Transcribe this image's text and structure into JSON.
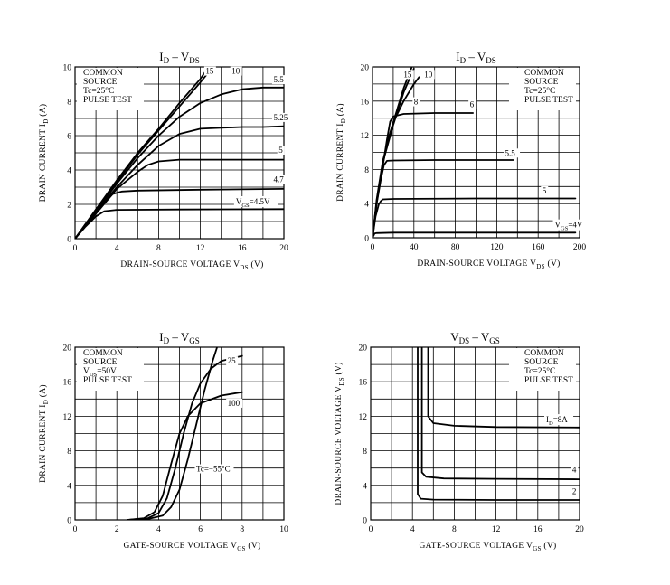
{
  "chart_data": [
    {
      "type": "line",
      "id": "id-vds-low",
      "title": "ID – VDS",
      "title_main": "I",
      "title_sub": "D",
      "title_dash": "–",
      "title_main2": "V",
      "title_sub2": "DS",
      "xlabel": "DRAIN-SOURCE VOLTAGE",
      "xlabel_sym": "V",
      "xlabel_sub": "DS",
      "xlabel_unit": "(V)",
      "ylabel": "DRAIN CURRENT",
      "ylabel_sym": "I",
      "ylabel_sub": "D",
      "ylabel_unit": "(A)",
      "xlim": [
        0,
        20
      ],
      "ylim": [
        0,
        10
      ],
      "xticks": [
        0,
        4,
        8,
        12,
        16,
        20
      ],
      "yticks": [
        0,
        2,
        4,
        6,
        8,
        10
      ],
      "xgrid": [
        2,
        4,
        6,
        8,
        10,
        12,
        14,
        16,
        18
      ],
      "ygrid": [
        1,
        2,
        3,
        4,
        5,
        6,
        7,
        8,
        9
      ],
      "notes": [
        "COMMON",
        "SOURCE",
        "Tc=25°C",
        "PULSE TEST"
      ],
      "series": [
        {
          "name": "15",
          "points": [
            [
              0,
              0
            ],
            [
              2,
              1.7
            ],
            [
              4,
              3.4
            ],
            [
              6,
              5.0
            ],
            [
              8,
              6.4
            ],
            [
              10,
              7.9
            ],
            [
              12,
              9.3
            ],
            [
              12.8,
              10
            ]
          ]
        },
        {
          "name": "10",
          "points": [
            [
              0,
              0
            ],
            [
              2,
              1.7
            ],
            [
              4,
              3.3
            ],
            [
              6,
              4.9
            ],
            [
              8,
              6.3
            ],
            [
              10,
              7.7
            ],
            [
              12,
              9.1
            ],
            [
              13.2,
              10
            ]
          ]
        },
        {
          "name": "5.5",
          "points": [
            [
              0,
              0
            ],
            [
              2,
              1.6
            ],
            [
              4,
              3.2
            ],
            [
              6,
              4.7
            ],
            [
              8,
              6.0
            ],
            [
              10,
              7.1
            ],
            [
              12,
              7.9
            ],
            [
              14,
              8.4
            ],
            [
              16,
              8.7
            ],
            [
              18,
              8.8
            ],
            [
              20,
              8.8
            ]
          ]
        },
        {
          "name": "5.25",
          "points": [
            [
              0,
              0
            ],
            [
              2,
              1.55
            ],
            [
              4,
              3.0
            ],
            [
              6,
              4.3
            ],
            [
              8,
              5.4
            ],
            [
              10,
              6.1
            ],
            [
              12,
              6.4
            ],
            [
              14,
              6.45
            ],
            [
              16,
              6.5
            ],
            [
              18,
              6.5
            ],
            [
              20,
              6.55
            ]
          ]
        },
        {
          "name": "5",
          "points": [
            [
              0,
              0
            ],
            [
              2,
              1.45
            ],
            [
              4,
              2.9
            ],
            [
              6,
              3.9
            ],
            [
              7,
              4.3
            ],
            [
              8,
              4.5
            ],
            [
              10,
              4.6
            ],
            [
              12,
              4.6
            ],
            [
              20,
              4.6
            ]
          ]
        },
        {
          "name": "4.7",
          "points": [
            [
              0,
              0
            ],
            [
              1,
              0.8
            ],
            [
              2,
              1.5
            ],
            [
              3,
              2.2
            ],
            [
              3.6,
              2.6
            ],
            [
              4.5,
              2.75
            ],
            [
              6,
              2.8
            ],
            [
              12,
              2.85
            ],
            [
              20,
              2.9
            ]
          ]
        },
        {
          "name": "VGS=4.5V",
          "points": [
            [
              0,
              0
            ],
            [
              1,
              0.7
            ],
            [
              2,
              1.3
            ],
            [
              2.8,
              1.6
            ],
            [
              4,
              1.68
            ],
            [
              10,
              1.7
            ],
            [
              20,
              1.72
            ]
          ]
        }
      ],
      "labels": [
        {
          "text": "15",
          "x": 12.5,
          "y": 9.6
        },
        {
          "text": "10",
          "x": 15,
          "y": 9.6
        },
        {
          "text": "5.5",
          "x": 19,
          "y": 9.1
        },
        {
          "text": "5.25",
          "x": 19,
          "y": 6.9
        },
        {
          "text": "5",
          "x": 19.5,
          "y": 5.0
        },
        {
          "text": "4.7",
          "x": 19,
          "y": 3.3
        },
        {
          "text": "VGS=4.5V",
          "x": 15.4,
          "y": 2.0,
          "main": "V",
          "sub": "GS",
          "rest": "=4.5V"
        }
      ]
    },
    {
      "type": "line",
      "id": "id-vds-high",
      "title": "ID – VDS",
      "title_main": "I",
      "title_sub": "D",
      "title_dash": "–",
      "title_main2": "V",
      "title_sub2": "DS",
      "xlabel": "DRAIN-SOURCE VOLTAGE",
      "xlabel_sym": "V",
      "xlabel_sub": "DS",
      "xlabel_unit": "(V)",
      "ylabel": "DRAIN CURRENT",
      "ylabel_sym": "I",
      "ylabel_sub": "D",
      "ylabel_unit": "(A)",
      "xlim": [
        0,
        200
      ],
      "ylim": [
        0,
        20
      ],
      "xticks": [
        0,
        40,
        80,
        120,
        160,
        200
      ],
      "yticks": [
        0,
        4,
        8,
        12,
        16,
        20
      ],
      "xgrid": [
        20,
        40,
        60,
        80,
        100,
        120,
        140,
        160,
        180
      ],
      "ygrid": [
        2,
        4,
        6,
        8,
        10,
        12,
        14,
        16,
        18
      ],
      "notes": [
        "COMMON",
        "SOURCE",
        "Tc=25°C",
        "PULSE TEST"
      ],
      "series": [
        {
          "name": "15",
          "points": [
            [
              0,
              0
            ],
            [
              4,
              4.5
            ],
            [
              10,
              9
            ],
            [
              20,
              13.5
            ],
            [
              30,
              17.5
            ],
            [
              38,
              20
            ]
          ]
        },
        {
          "name": "10",
          "points": [
            [
              0,
              0
            ],
            [
              4,
              4.3
            ],
            [
              10,
              8.8
            ],
            [
              20,
              13.2
            ],
            [
              30,
              17
            ],
            [
              40,
              19.8
            ]
          ]
        },
        {
          "name": "8",
          "points": [
            [
              0,
              0
            ],
            [
              4,
              4.2
            ],
            [
              10,
              8.6
            ],
            [
              15,
              11.5
            ],
            [
              20,
              13.5
            ],
            [
              30,
              16
            ],
            [
              40,
              18
            ],
            [
              45,
              18.8
            ]
          ]
        },
        {
          "name": "6",
          "points": [
            [
              0,
              0
            ],
            [
              4,
              4.1
            ],
            [
              10,
              8.4
            ],
            [
              14,
              11.5
            ],
            [
              17,
              13.6
            ],
            [
              20,
              14.2
            ],
            [
              30,
              14.5
            ],
            [
              60,
              14.6
            ],
            [
              97,
              14.6
            ]
          ]
        },
        {
          "name": "5.5",
          "points": [
            [
              0,
              0
            ],
            [
              4,
              4.0
            ],
            [
              8,
              6.8
            ],
            [
              11,
              8.5
            ],
            [
              14,
              9.0
            ],
            [
              20,
              9.05
            ],
            [
              60,
              9.1
            ],
            [
              136,
              9.1
            ]
          ]
        },
        {
          "name": "5",
          "points": [
            [
              0,
              0
            ],
            [
              3,
              2.5
            ],
            [
              6,
              3.9
            ],
            [
              8,
              4.3
            ],
            [
              10,
              4.5
            ],
            [
              20,
              4.55
            ],
            [
              100,
              4.6
            ],
            [
              196,
              4.6
            ]
          ]
        },
        {
          "name": "VGS=4V",
          "points": [
            [
              0,
              0
            ],
            [
              2,
              0.5
            ],
            [
              4,
              0.55
            ],
            [
              20,
              0.6
            ],
            [
              196,
              0.6
            ]
          ]
        }
      ],
      "labels": [
        {
          "text": "15",
          "x": 30,
          "y": 18.8
        },
        {
          "text": "10",
          "x": 50,
          "y": 18.8
        },
        {
          "text": "8",
          "x": 40,
          "y": 15.6
        },
        {
          "text": "6",
          "x": 94,
          "y": 15.3
        },
        {
          "text": "5.5",
          "x": 128,
          "y": 9.6
        },
        {
          "text": "5",
          "x": 164,
          "y": 5.2
        },
        {
          "text": "VGS=4V",
          "x": 176,
          "y": 1.2,
          "main": "V",
          "sub": "GS",
          "rest": "=4V"
        }
      ]
    },
    {
      "type": "line",
      "id": "id-vgs",
      "title": "ID – VGS",
      "title_main": "I",
      "title_sub": "D",
      "title_dash": "–",
      "title_main2": "V",
      "title_sub2": "GS",
      "xlabel": "GATE-SOURCE VOLTAGE",
      "xlabel_sym": "V",
      "xlabel_sub": "GS",
      "xlabel_unit": "(V)",
      "ylabel": "DRAIN CURRENT",
      "ylabel_sym": "I",
      "ylabel_sub": "D",
      "ylabel_unit": "(A)",
      "xlim": [
        0,
        10
      ],
      "ylim": [
        0,
        20
      ],
      "xticks": [
        0,
        2,
        4,
        6,
        8,
        10
      ],
      "yticks": [
        0,
        4,
        8,
        12,
        16,
        20
      ],
      "xgrid": [
        1,
        2,
        3,
        4,
        5,
        6,
        7,
        8,
        9
      ],
      "ygrid": [
        2,
        4,
        6,
        8,
        10,
        12,
        14,
        16,
        18
      ],
      "notes": [
        "COMMON",
        "SOURCE",
        "VDS=50V",
        "PULSE TEST"
      ],
      "notes_sub": {
        "2": {
          "main": "V",
          "sub": "DS",
          "rest": "=50V"
        }
      },
      "series": [
        {
          "name": "Tc=-55°C",
          "points": [
            [
              2.5,
              0
            ],
            [
              3.5,
              0.1
            ],
            [
              4.2,
              0.5
            ],
            [
              4.6,
              1.5
            ],
            [
              5,
              3.5
            ],
            [
              5.4,
              7
            ],
            [
              5.8,
              11
            ],
            [
              6.2,
              15
            ],
            [
              6.6,
              18.5
            ],
            [
              6.8,
              20
            ]
          ]
        },
        {
          "name": "25",
          "points": [
            [
              2.5,
              0
            ],
            [
              3.5,
              0.2
            ],
            [
              4,
              0.8
            ],
            [
              4.4,
              2.5
            ],
            [
              4.8,
              6
            ],
            [
              5.2,
              10
            ],
            [
              5.6,
              13.5
            ],
            [
              6,
              15.8
            ],
            [
              6.5,
              17.5
            ],
            [
              7,
              18.4
            ],
            [
              8,
              19
            ]
          ]
        },
        {
          "name": "100",
          "points": [
            [
              2.5,
              0
            ],
            [
              3.3,
              0.2
            ],
            [
              3.8,
              0.9
            ],
            [
              4.2,
              2.8
            ],
            [
              4.6,
              6.5
            ],
            [
              5,
              10
            ],
            [
              5.4,
              12
            ],
            [
              6,
              13.5
            ],
            [
              7,
              14.4
            ],
            [
              8,
              14.8
            ]
          ]
        }
      ],
      "labels": [
        {
          "text": "25",
          "x": 7.3,
          "y": 18.1
        },
        {
          "text": "100",
          "x": 7.3,
          "y": 13.2
        },
        {
          "text": "Tc=−55°C",
          "x": 5.8,
          "y": 5.6
        }
      ]
    },
    {
      "type": "line",
      "id": "vds-vgs",
      "title": "VDS – VGS",
      "title_main": "V",
      "title_sub": "DS",
      "title_dash": "–",
      "title_main2": "V",
      "title_sub2": "GS",
      "xlabel": "GATE-SOURCE VOLTAGE",
      "xlabel_sym": "V",
      "xlabel_sub": "GS",
      "xlabel_unit": "(V)",
      "ylabel": "DRAIN-SOURCE VOLTAGE",
      "ylabel_sym": "V",
      "ylabel_sub": "DS",
      "ylabel_unit": "(V)",
      "xlim": [
        0,
        20
      ],
      "ylim": [
        0,
        20
      ],
      "xticks": [
        0,
        4,
        8,
        12,
        16,
        20
      ],
      "yticks": [
        0,
        4,
        8,
        12,
        16,
        20
      ],
      "xgrid": [
        2,
        4,
        6,
        8,
        10,
        12,
        14,
        16,
        18
      ],
      "ygrid": [
        2,
        4,
        6,
        8,
        10,
        12,
        14,
        16,
        18
      ],
      "notes": [
        "COMMON",
        "SOURCE",
        "Tc=25°C",
        "PULSE TEST"
      ],
      "series": [
        {
          "name": "ID=8A",
          "points": [
            [
              5.5,
              20
            ],
            [
              5.5,
              12
            ],
            [
              6,
              11.2
            ],
            [
              8,
              10.9
            ],
            [
              12,
              10.75
            ],
            [
              20,
              10.7
            ]
          ]
        },
        {
          "name": "4",
          "points": [
            [
              4.9,
              20
            ],
            [
              4.9,
              5.5
            ],
            [
              5.3,
              5.0
            ],
            [
              7,
              4.8
            ],
            [
              12,
              4.75
            ],
            [
              20,
              4.7
            ]
          ]
        },
        {
          "name": "2",
          "points": [
            [
              4.5,
              20
            ],
            [
              4.5,
              3.0
            ],
            [
              4.8,
              2.45
            ],
            [
              6,
              2.35
            ],
            [
              12,
              2.3
            ],
            [
              20,
              2.3
            ]
          ]
        }
      ],
      "labels": [
        {
          "text": "ID=8A",
          "x": 16.8,
          "y": 11.3,
          "main": "I",
          "sub": "D",
          "rest": "=8A"
        },
        {
          "text": "4",
          "x": 19.3,
          "y": 5.5
        },
        {
          "text": "2",
          "x": 19.3,
          "y": 3.0
        }
      ]
    }
  ]
}
